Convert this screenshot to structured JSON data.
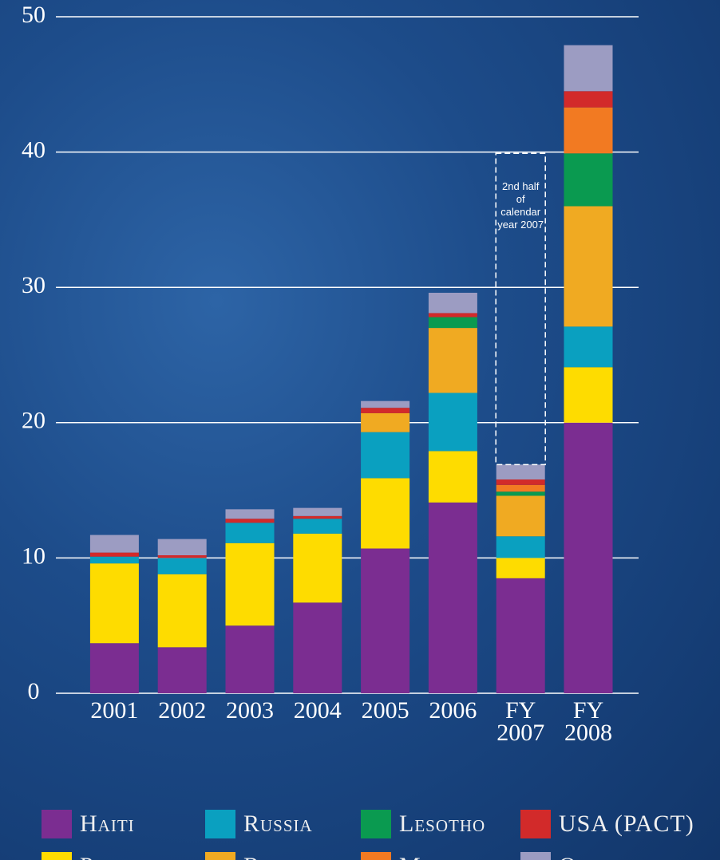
{
  "chart_data": {
    "type": "bar",
    "stacked": true,
    "categories": [
      "2001",
      "2002",
      "2003",
      "2004",
      "2005",
      "2006",
      "FY 2007",
      "FY 2008"
    ],
    "series": [
      {
        "name": "Haiti",
        "color": "#7b2d91",
        "values": [
          3.7,
          3.4,
          5.0,
          6.7,
          10.7,
          14.1,
          8.5,
          20.0
        ]
      },
      {
        "name": "Peru",
        "color": "#fedc00",
        "values": [
          5.9,
          5.4,
          6.1,
          5.1,
          5.2,
          3.8,
          1.5,
          4.1
        ]
      },
      {
        "name": "Russia",
        "color": "#0aa0c0",
        "values": [
          0.5,
          1.2,
          1.5,
          1.1,
          3.4,
          4.3,
          1.6,
          3.0
        ]
      },
      {
        "name": "Rwanda",
        "color": "#f0aa22",
        "values": [
          0,
          0,
          0,
          0,
          1.4,
          4.8,
          3.0,
          8.9
        ]
      },
      {
        "name": "Lesotho",
        "color": "#0a9a50",
        "values": [
          0,
          0,
          0,
          0,
          0,
          0.8,
          0.3,
          3.9
        ]
      },
      {
        "name": "Malawi",
        "color": "#f27a22",
        "values": [
          0,
          0,
          0,
          0,
          0,
          0,
          0.5,
          3.4
        ]
      },
      {
        "name": "USA (PACT)",
        "color": "#d22a2a",
        "values": [
          0.3,
          0.2,
          0.3,
          0.2,
          0.4,
          0.3,
          0.4,
          1.2
        ]
      },
      {
        "name": "Other",
        "color": "#9c9cc2",
        "values": [
          1.3,
          1.2,
          0.7,
          0.6,
          0.5,
          1.5,
          1.1,
          3.4
        ]
      }
    ],
    "annotation": {
      "text": "2nd half of calendar year 2007",
      "category": "FY 2007",
      "range": [
        16.9,
        39.9
      ]
    },
    "ylim": [
      0,
      50
    ],
    "yticks": [
      0,
      10,
      20,
      30,
      40,
      50
    ],
    "grid": true
  }
}
